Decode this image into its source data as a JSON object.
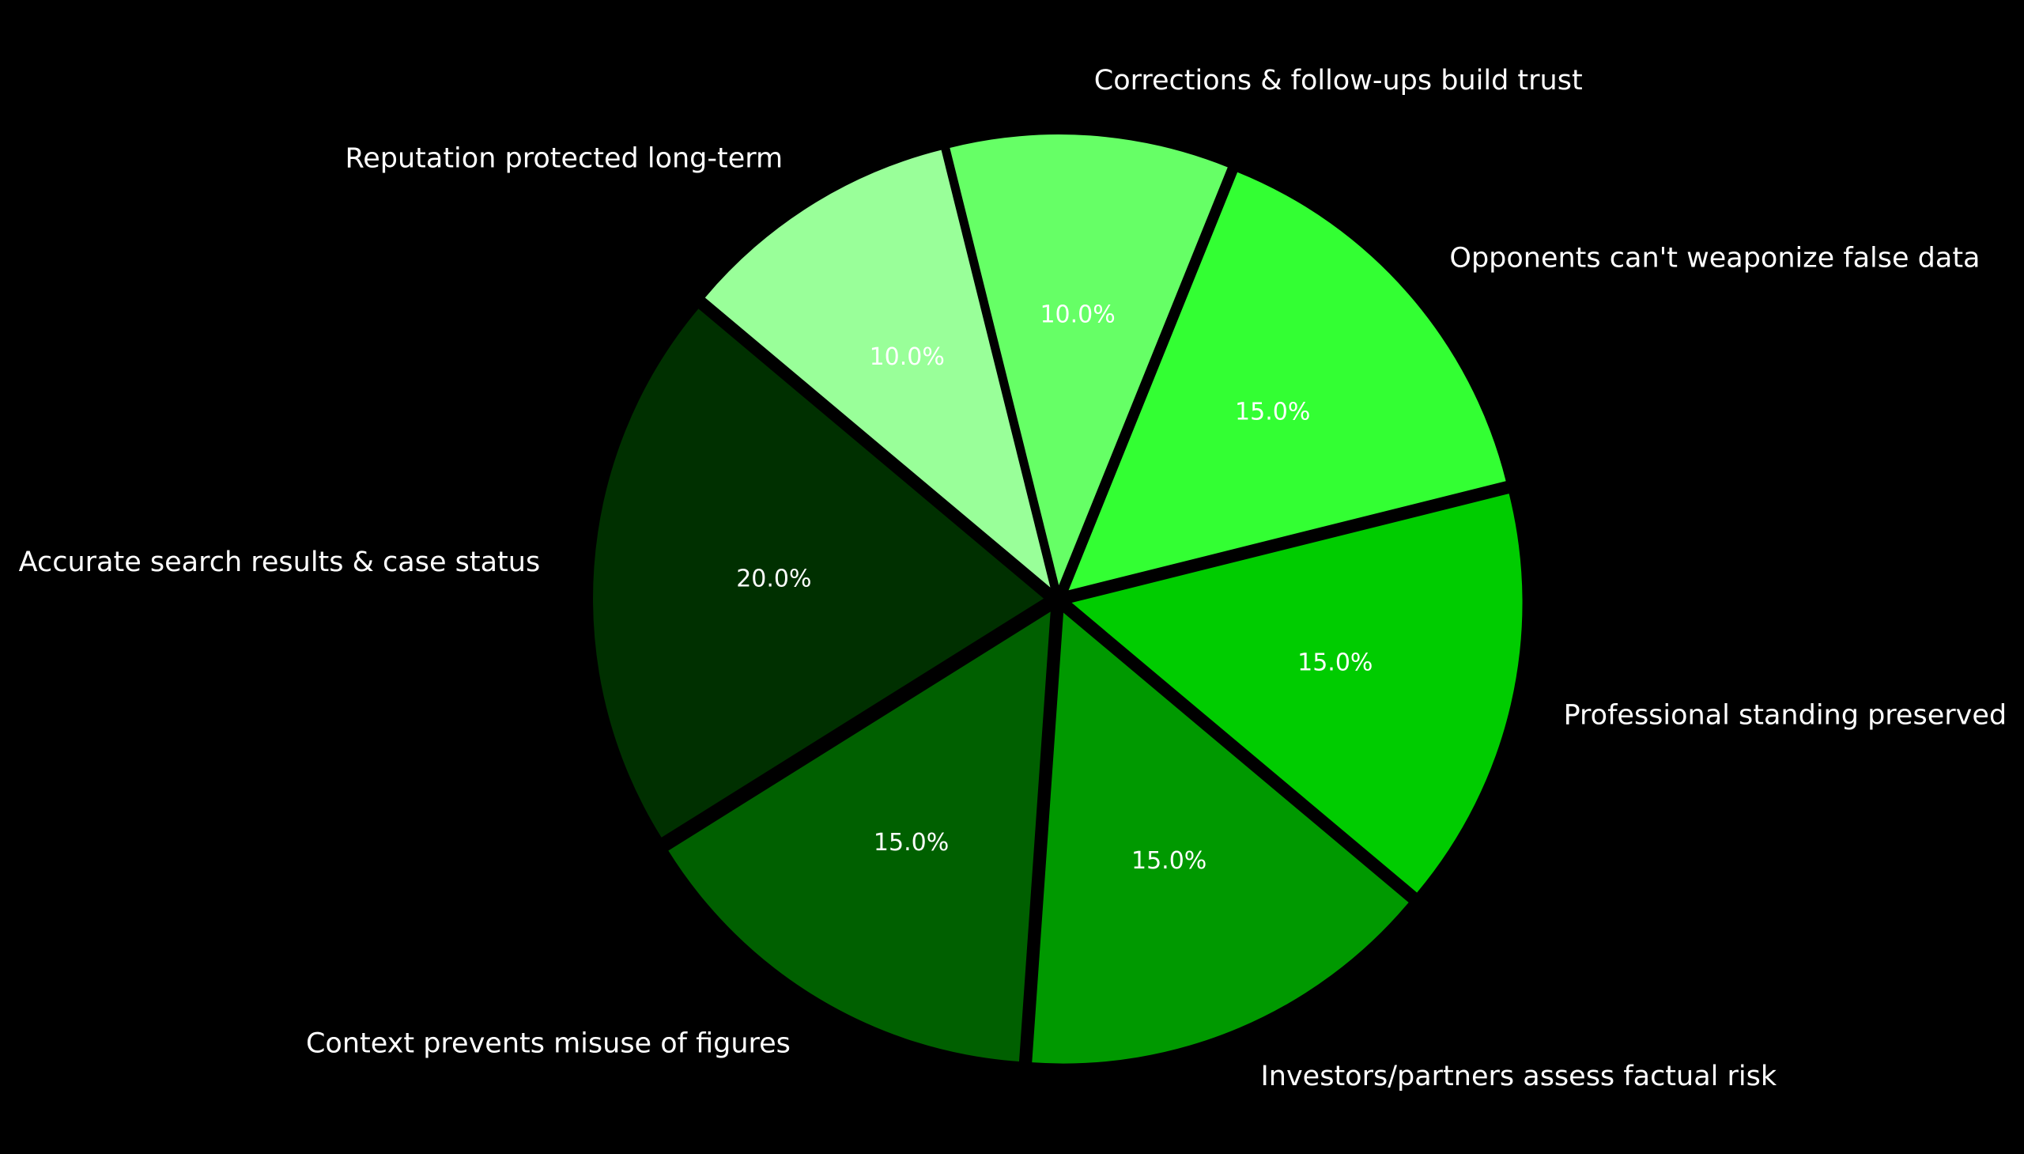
{
  "chart_data": {
    "type": "pie",
    "title": "",
    "slices": [
      {
        "label": "Accurate search results & case status",
        "value": 20.0,
        "pct_label": "20.0%",
        "color": "#003000"
      },
      {
        "label": "Context prevents misuse of figures",
        "value": 15.0,
        "pct_label": "15.0%",
        "color": "#006000"
      },
      {
        "label": "Investors/partners assess factual risk",
        "value": 15.0,
        "pct_label": "15.0%",
        "color": "#009900"
      },
      {
        "label": "Professional standing preserved",
        "value": 15.0,
        "pct_label": "15.0%",
        "color": "#00cc00"
      },
      {
        "label": "Opponents can't weaponize false data",
        "value": 15.0,
        "pct_label": "15.0%",
        "color": "#33ff33"
      },
      {
        "label": "Corrections & follow-ups build trust",
        "value": 10.0,
        "pct_label": "10.0%",
        "color": "#66ff66"
      },
      {
        "label": "Reputation protected long-term",
        "value": 10.0,
        "pct_label": "10.0%",
        "color": "#99ff99"
      }
    ],
    "background_color": "#000000",
    "text_color": "#ffffff",
    "start_angle_deg": 140,
    "direction": "counterclockwise",
    "exploded": true
  }
}
